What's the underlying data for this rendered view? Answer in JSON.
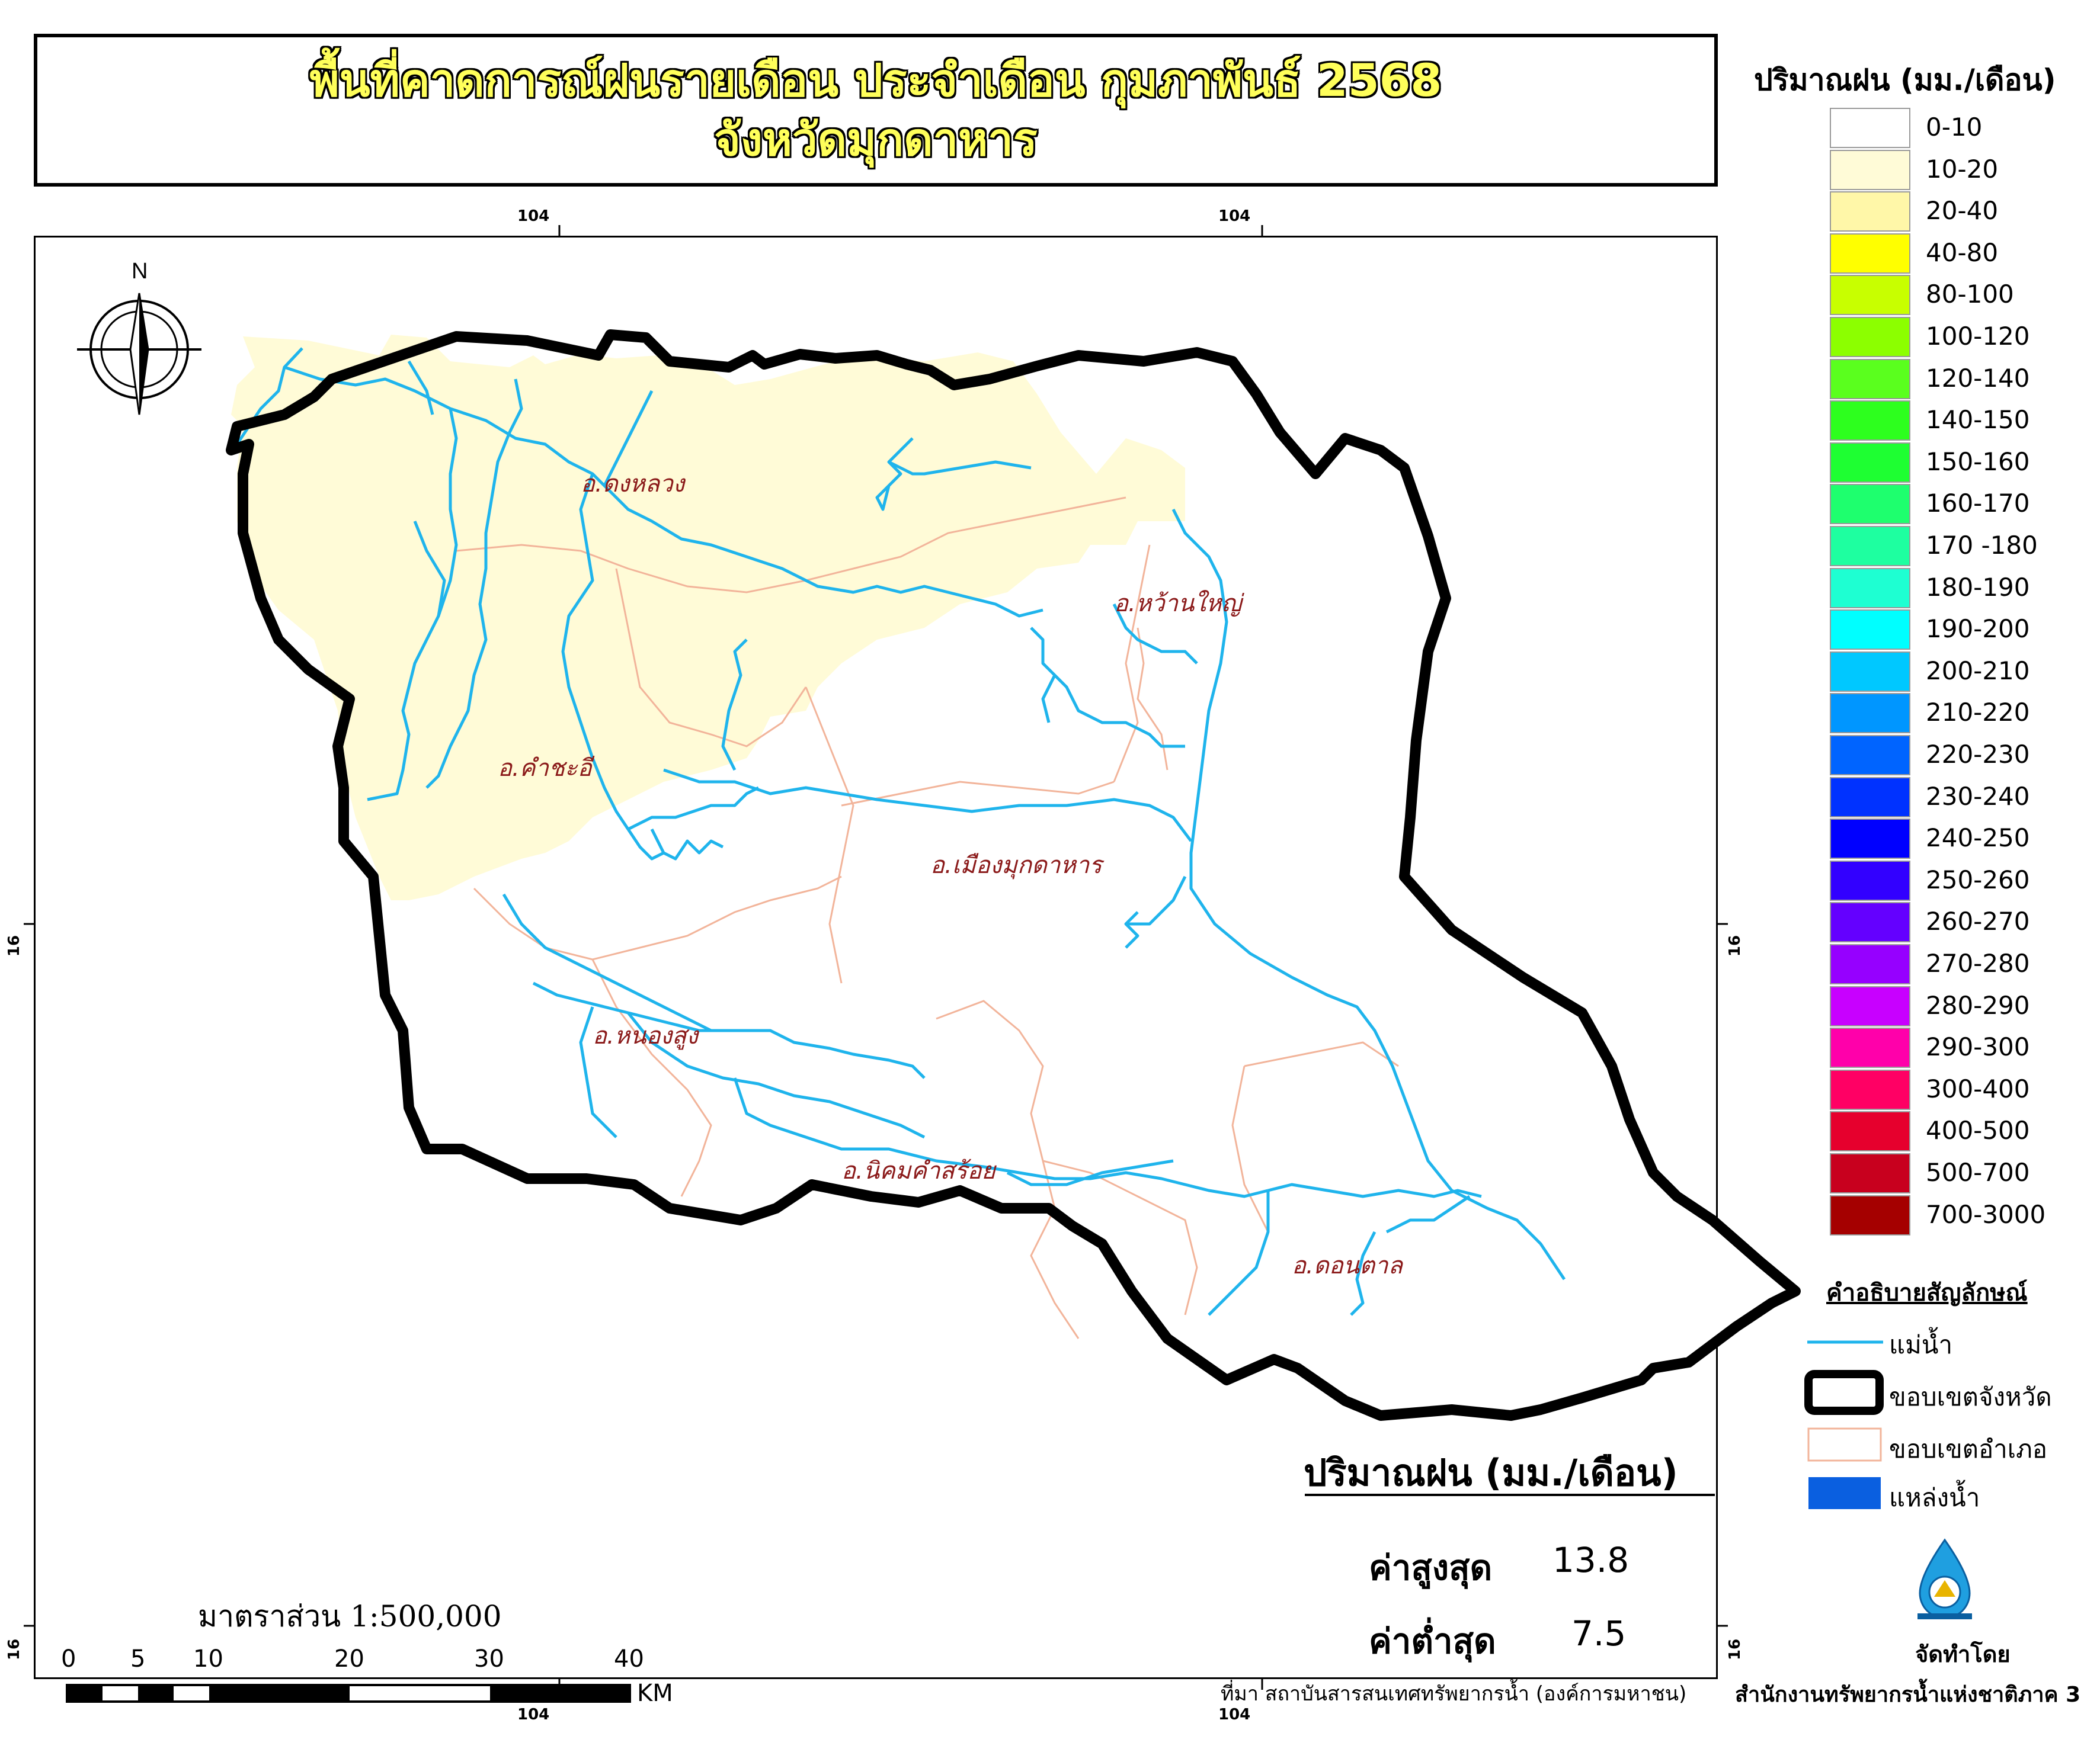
{
  "title": {
    "line1": "พื้นที่คาดการณ์ฝนรายเดือน ประจำเดือน กุมภาพันธ์ 2568",
    "line2": "จังหวัดมุกดาหาร"
  },
  "grid_ticks": {
    "lon_left": "104",
    "lon_right": "104",
    "lat": "16"
  },
  "north_arrow": {
    "label": "N"
  },
  "districts": [
    "อ.ดงหลวง",
    "อ.หว้านใหญ่",
    "อ.คำชะอี",
    "อ.เมืองมุกดาหาร",
    "อ.หนองสูง",
    "อ.นิคมคำสร้อย",
    "อ.ดอนตาล"
  ],
  "legend": {
    "title": "ปริมาณฝน (มม./เดือน)",
    "classes": [
      {
        "label": "0-10",
        "color": "#ffffff"
      },
      {
        "label": "10-20",
        "color": "#fffbd7"
      },
      {
        "label": "20-40",
        "color": "#fff7a8"
      },
      {
        "label": "40-80",
        "color": "#ffff00"
      },
      {
        "label": "80-100",
        "color": "#c8ff00"
      },
      {
        "label": "100-120",
        "color": "#8cff00"
      },
      {
        "label": "120-140",
        "color": "#5aff1e"
      },
      {
        "label": "140-150",
        "color": "#2dff1e"
      },
      {
        "label": "150-160",
        "color": "#1eff32"
      },
      {
        "label": "160-170",
        "color": "#1eff6e"
      },
      {
        "label": "170 -180",
        "color": "#1effa0"
      },
      {
        "label": "180-190",
        "color": "#1effd2"
      },
      {
        "label": "190-200",
        "color": "#00ffff"
      },
      {
        "label": "200-210",
        "color": "#00c8ff"
      },
      {
        "label": "210-220",
        "color": "#0096ff"
      },
      {
        "label": "220-230",
        "color": "#0064ff"
      },
      {
        "label": "230-240",
        "color": "#0032ff"
      },
      {
        "label": "240-250",
        "color": "#0000ff"
      },
      {
        "label": "250-260",
        "color": "#3200ff"
      },
      {
        "label": "260-270",
        "color": "#6400ff"
      },
      {
        "label": "270-280",
        "color": "#9600ff"
      },
      {
        "label": "280-290",
        "color": "#c800ff"
      },
      {
        "label": "290-300",
        "color": "#ff00aa"
      },
      {
        "label": "300-400",
        "color": "#ff0064"
      },
      {
        "label": "400-500",
        "color": "#e6002d"
      },
      {
        "label": "500-700",
        "color": "#c8001e"
      },
      {
        "label": "700-3000",
        "color": "#a50000"
      }
    ]
  },
  "symbols": {
    "title": "คำอธิบายสัญลักษณ์",
    "river": "แม่น้ำ",
    "province_boundary": "ขอบเขตจังหวัด",
    "district_boundary": "ขอบเขตอำเภอ",
    "water_body": "แหล่งน้ำ"
  },
  "stats": {
    "title": "ปริมาณฝน (มม./เดือน)",
    "max_label": "ค่าสูงสุด",
    "max_value": "13.8",
    "min_label": "ค่าต่ำสุด",
    "min_value": "7.5"
  },
  "scale": {
    "text": "มาตราส่วน 1:500,000",
    "labels": [
      "0",
      "5",
      "10",
      "20",
      "30",
      "40"
    ],
    "unit": "KM"
  },
  "source": "ที่มา  สถาบันสารสนเทศทรัพยากรน้ำ (องค์การมหาชน)",
  "credit": {
    "label": "จัดทำโดย",
    "org": "สำนักงานทรัพยากรน้ำแห่งชาติภาค 3"
  },
  "colors": {
    "river": "#1fb4ec",
    "district_boundary": "#f2b49a",
    "province_boundary": "#000000",
    "water_body": "#0a5fe0",
    "zone_10_20": "#fffbd7"
  }
}
